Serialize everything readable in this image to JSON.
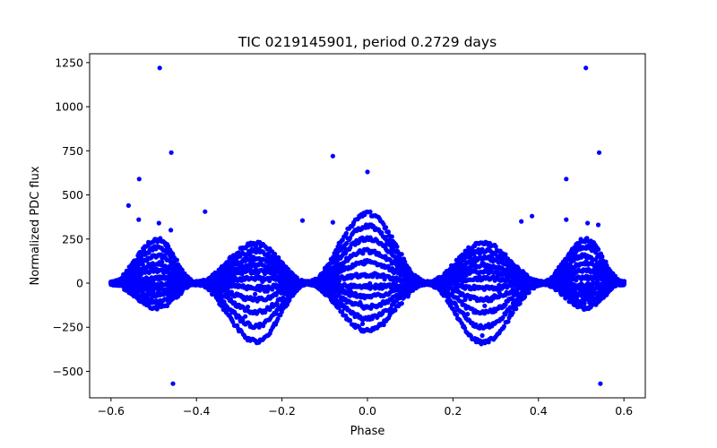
{
  "chart_data": {
    "type": "scatter",
    "title": "TIC 0219145901, period 0.2729 days",
    "xlabel": "Phase",
    "ylabel": "Normalized PDC flux",
    "xlim": [
      -0.65,
      0.65
    ],
    "ylim": [
      -650,
      1300
    ],
    "xticks": [
      -0.6,
      -0.4,
      -0.2,
      0.0,
      0.2,
      0.4,
      0.6
    ],
    "xtick_labels": [
      "−0.6",
      "−0.4",
      "−0.2",
      "0.0",
      "0.2",
      "0.4",
      "0.6"
    ],
    "yticks": [
      -500,
      -250,
      0,
      250,
      500,
      750,
      1000,
      1250
    ],
    "ytick_labels": [
      "−500",
      "−250",
      "0",
      "250",
      "500",
      "750",
      "1000",
      "1250"
    ],
    "grid": false,
    "marker_color": "#0000ff",
    "period_days": 0.2729,
    "phase_range": [
      -0.6,
      0.6
    ],
    "envelopes": [
      {
        "name": "upper",
        "points": [
          [
            -0.6,
            0
          ],
          [
            -0.49,
            245
          ],
          [
            -0.4,
            0
          ],
          [
            -0.26,
            225
          ],
          [
            -0.14,
            0
          ],
          [
            0.0,
            395
          ],
          [
            0.14,
            0
          ],
          [
            0.27,
            225
          ],
          [
            0.41,
            0
          ],
          [
            0.51,
            245
          ],
          [
            0.6,
            0
          ]
        ]
      },
      {
        "name": "lower",
        "points": [
          [
            -0.6,
            0
          ],
          [
            -0.49,
            -140
          ],
          [
            -0.4,
            0
          ],
          [
            -0.26,
            -330
          ],
          [
            -0.14,
            0
          ],
          [
            0.0,
            -270
          ],
          [
            0.14,
            0
          ],
          [
            0.27,
            -335
          ],
          [
            0.41,
            0
          ],
          [
            0.51,
            -140
          ],
          [
            0.6,
            0
          ]
        ]
      }
    ],
    "outliers": [
      {
        "x": -0.486,
        "y": 1220
      },
      {
        "x": 0.511,
        "y": 1220
      },
      {
        "x": -0.459,
        "y": 740
      },
      {
        "x": 0.542,
        "y": 740
      },
      {
        "x": -0.081,
        "y": 720
      },
      {
        "x": 0.0,
        "y": 630
      },
      {
        "x": -0.534,
        "y": 590
      },
      {
        "x": 0.465,
        "y": 590
      },
      {
        "x": -0.559,
        "y": 440
      },
      {
        "x": -0.38,
        "y": 405
      },
      {
        "x": 0.385,
        "y": 380
      },
      {
        "x": -0.535,
        "y": 360
      },
      {
        "x": 0.465,
        "y": 360
      },
      {
        "x": 0.36,
        "y": 350
      },
      {
        "x": -0.152,
        "y": 355
      },
      {
        "x": -0.081,
        "y": 345
      },
      {
        "x": -0.488,
        "y": 340
      },
      {
        "x": 0.515,
        "y": 340
      },
      {
        "x": 0.54,
        "y": 330
      },
      {
        "x": -0.46,
        "y": 300
      },
      {
        "x": -0.455,
        "y": -570
      },
      {
        "x": 0.545,
        "y": -570
      }
    ]
  }
}
